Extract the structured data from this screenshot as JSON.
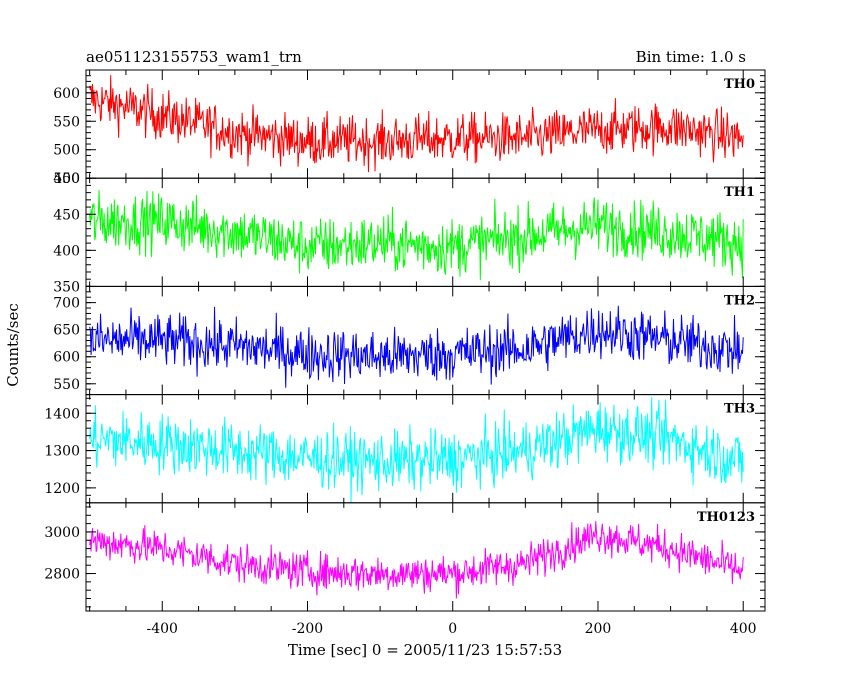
{
  "chart_data": {
    "type": "line",
    "title": "ae051123155753_wam1_trn",
    "bin_time_label": "Bin time: 1.0 s",
    "xlabel": "Time [sec] 0 = 2005/11/23 15:57:53",
    "ylabel": "Counts/sec",
    "xlim": [
      -505,
      430
    ],
    "x_ticks": [
      "-400",
      "-200",
      "0",
      "200",
      "400"
    ],
    "x_tick_values": [
      -400,
      -200,
      0,
      200,
      400
    ],
    "x_range_data": [
      -500,
      400
    ],
    "panels": [
      {
        "name": "TH0",
        "color": "#ff0000",
        "ylim": [
          450,
          640
        ],
        "y_ticks": [
          "450",
          "500",
          "550",
          "600"
        ],
        "y_tick_values": [
          450,
          500,
          550,
          600
        ],
        "trend_x": [
          -500,
          -400,
          -300,
          -200,
          -100,
          0,
          100,
          200,
          300,
          400
        ],
        "trend_y": [
          590,
          560,
          530,
          515,
          515,
          520,
          520,
          535,
          540,
          520
        ],
        "noise": 22
      },
      {
        "name": "TH1",
        "color": "#00ff00",
        "ylim": [
          350,
          500
        ],
        "y_ticks": [
          "350",
          "400",
          "450",
          "500"
        ],
        "y_tick_values": [
          350,
          400,
          450,
          500
        ],
        "trend_x": [
          -500,
          -400,
          -300,
          -200,
          -100,
          0,
          100,
          200,
          300,
          400
        ],
        "trend_y": [
          440,
          440,
          425,
          405,
          410,
          405,
          420,
          435,
          425,
          410
        ],
        "noise": 20
      },
      {
        "name": "TH2",
        "color": "#0000ff",
        "ylim": [
          530,
          730
        ],
        "y_ticks": [
          "550",
          "600",
          "650",
          "700"
        ],
        "y_tick_values": [
          550,
          600,
          650,
          700
        ],
        "trend_x": [
          -500,
          -400,
          -300,
          -200,
          -100,
          0,
          100,
          200,
          300,
          400
        ],
        "trend_y": [
          630,
          630,
          620,
          605,
          600,
          605,
          615,
          650,
          630,
          610
        ],
        "noise": 25
      },
      {
        "name": "TH3",
        "color": "#00ffff",
        "ylim": [
          1160,
          1450
        ],
        "y_ticks": [
          "1200",
          "1300",
          "1400"
        ],
        "y_tick_values": [
          1200,
          1300,
          1400
        ],
        "trend_x": [
          -500,
          -400,
          -300,
          -200,
          -100,
          0,
          100,
          200,
          300,
          400
        ],
        "trend_y": [
          1330,
          1320,
          1300,
          1280,
          1270,
          1275,
          1300,
          1360,
          1330,
          1270
        ],
        "noise": 40
      },
      {
        "name": "TH0123",
        "color": "#ff00ff",
        "ylim": [
          2620,
          3140
        ],
        "y_ticks": [
          "2800",
          "3000"
        ],
        "y_tick_values": [
          2800,
          3000
        ],
        "trend_x": [
          -500,
          -400,
          -300,
          -200,
          -100,
          0,
          100,
          200,
          300,
          400
        ],
        "trend_y": [
          2960,
          2920,
          2850,
          2810,
          2800,
          2800,
          2850,
          2990,
          2920,
          2810
        ],
        "noise": 45
      }
    ]
  }
}
